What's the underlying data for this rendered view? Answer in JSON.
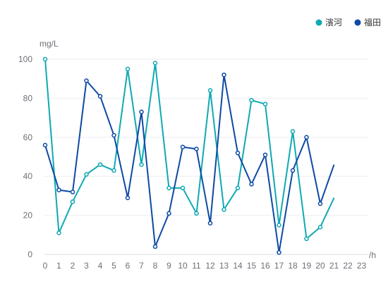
{
  "chart_data": {
    "type": "line",
    "y_unit": "mg/L",
    "x_unit": "/h",
    "ylim": [
      0,
      100
    ],
    "y_ticks": [
      0,
      20,
      40,
      60,
      80,
      100
    ],
    "x_ticks": [
      "0",
      "1",
      "2",
      "3",
      "4",
      "5",
      "6",
      "7",
      "8",
      "9",
      "10",
      "11",
      "12",
      "13",
      "14",
      "15",
      "16",
      "17",
      "18",
      "19",
      "20",
      "21",
      "22",
      "23"
    ],
    "grid": true,
    "legend_position": "top-right",
    "series": [
      {
        "name": "濱河",
        "color": "#0fa9b3",
        "values": [
          100,
          11,
          27,
          41,
          46,
          43,
          95,
          46,
          98,
          34,
          34,
          21,
          84,
          23,
          34,
          79,
          77,
          15,
          63,
          8,
          14,
          29
        ]
      },
      {
        "name": "福田",
        "color": "#0d4aa3",
        "values": [
          56,
          33,
          32,
          89,
          81,
          61,
          29,
          73,
          4,
          21,
          55,
          54,
          16,
          92,
          52,
          36,
          51,
          1,
          43,
          60,
          26,
          46
        ]
      }
    ]
  }
}
